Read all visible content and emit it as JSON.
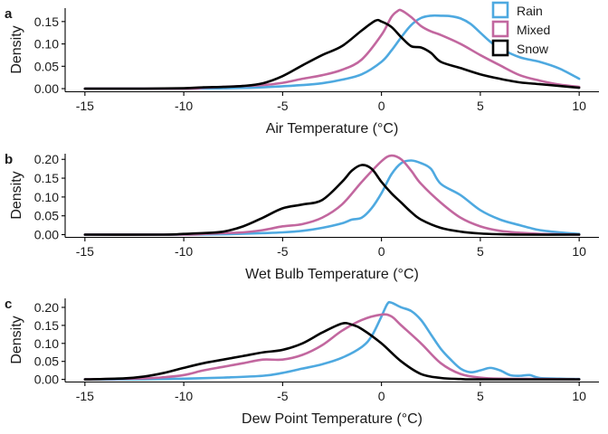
{
  "legend": {
    "items": [
      {
        "label": "Rain",
        "color": "#4ea9e0"
      },
      {
        "label": "Mixed",
        "color": "#c2679f"
      },
      {
        "label": "Snow",
        "color": "#000000"
      }
    ],
    "placement": "top-right"
  },
  "chart_data": [
    {
      "type": "line",
      "panel_label": "a",
      "xlabel": "Air Temperature (°C)",
      "ylabel": "Density",
      "xlim": [
        -16,
        11
      ],
      "ylim": [
        -0.006,
        0.18
      ],
      "xticks": [
        -15,
        -10,
        -5,
        0,
        5,
        10
      ],
      "yticks": [
        0.0,
        0.05,
        0.1,
        0.15
      ],
      "ytick_labels": [
        "0.00",
        "0.05",
        "0.10",
        "0.15"
      ],
      "grid": false,
      "series": [
        {
          "name": "Rain",
          "color": "#4ea9e0",
          "points": [
            [
              -15,
              0
            ],
            [
              -10,
              0
            ],
            [
              -8,
              0.001
            ],
            [
              -6,
              0.003
            ],
            [
              -4,
              0.008
            ],
            [
              -3,
              0.012
            ],
            [
              -2,
              0.02
            ],
            [
              -1,
              0.032
            ],
            [
              0,
              0.06
            ],
            [
              0.5,
              0.085
            ],
            [
              1,
              0.115
            ],
            [
              1.5,
              0.142
            ],
            [
              2,
              0.158
            ],
            [
              2.5,
              0.163
            ],
            [
              3,
              0.163
            ],
            [
              3.5,
              0.162
            ],
            [
              4,
              0.157
            ],
            [
              4.5,
              0.145
            ],
            [
              5,
              0.125
            ],
            [
              5.5,
              0.105
            ],
            [
              6,
              0.09
            ],
            [
              7,
              0.07
            ],
            [
              8,
              0.06
            ],
            [
              9,
              0.045
            ],
            [
              10,
              0.022
            ]
          ]
        },
        {
          "name": "Mixed",
          "color": "#c2679f",
          "points": [
            [
              -15,
              0
            ],
            [
              -10,
              0
            ],
            [
              -9,
              0.002
            ],
            [
              -8,
              0.004
            ],
            [
              -6,
              0.008
            ],
            [
              -5,
              0.013
            ],
            [
              -4,
              0.022
            ],
            [
              -3,
              0.03
            ],
            [
              -2,
              0.042
            ],
            [
              -1,
              0.065
            ],
            [
              0,
              0.12
            ],
            [
              0.5,
              0.16
            ],
            [
              0.8,
              0.173
            ],
            [
              1,
              0.175
            ],
            [
              1.5,
              0.16
            ],
            [
              2,
              0.14
            ],
            [
              2.5,
              0.128
            ],
            [
              3,
              0.12
            ],
            [
              4,
              0.1
            ],
            [
              5,
              0.075
            ],
            [
              6,
              0.052
            ],
            [
              7,
              0.03
            ],
            [
              8,
              0.018
            ],
            [
              9,
              0.009
            ],
            [
              10,
              0.004
            ]
          ]
        },
        {
          "name": "Snow",
          "color": "#000000",
          "points": [
            [
              -15,
              0
            ],
            [
              -12,
              0
            ],
            [
              -10,
              0.001
            ],
            [
              -9,
              0.003
            ],
            [
              -8,
              0.004
            ],
            [
              -7,
              0.006
            ],
            [
              -6,
              0.012
            ],
            [
              -5,
              0.028
            ],
            [
              -4,
              0.052
            ],
            [
              -3,
              0.075
            ],
            [
              -2,
              0.095
            ],
            [
              -1,
              0.13
            ],
            [
              -0.3,
              0.152
            ],
            [
              0,
              0.15
            ],
            [
              0.5,
              0.138
            ],
            [
              1,
              0.115
            ],
            [
              1.5,
              0.095
            ],
            [
              2,
              0.092
            ],
            [
              2.5,
              0.08
            ],
            [
              3,
              0.06
            ],
            [
              4,
              0.046
            ],
            [
              5,
              0.032
            ],
            [
              6,
              0.022
            ],
            [
              7,
              0.014
            ],
            [
              8,
              0.01
            ],
            [
              9,
              0.006
            ],
            [
              10,
              0.002
            ]
          ]
        }
      ]
    },
    {
      "type": "line",
      "panel_label": "b",
      "xlabel": "Wet Bulb Temperature (°C)",
      "ylabel": "Density",
      "xlim": [
        -16,
        11
      ],
      "ylim": [
        -0.006,
        0.215
      ],
      "xticks": [
        -15,
        -10,
        -5,
        0,
        5,
        10
      ],
      "yticks": [
        0.0,
        0.05,
        0.1,
        0.15,
        0.2
      ],
      "ytick_labels": [
        "0.00",
        "0.05",
        "0.10",
        "0.15",
        "0.20"
      ],
      "grid": false,
      "series": [
        {
          "name": "Rain",
          "color": "#4ea9e0",
          "points": [
            [
              -15,
              0
            ],
            [
              -10,
              0
            ],
            [
              -8,
              0.001
            ],
            [
              -6,
              0.004
            ],
            [
              -5,
              0.006
            ],
            [
              -4,
              0.01
            ],
            [
              -3,
              0.018
            ],
            [
              -2,
              0.03
            ],
            [
              -1.5,
              0.04
            ],
            [
              -1,
              0.045
            ],
            [
              -0.5,
              0.07
            ],
            [
              0,
              0.11
            ],
            [
              0.5,
              0.16
            ],
            [
              1,
              0.19
            ],
            [
              1.5,
              0.197
            ],
            [
              2,
              0.19
            ],
            [
              2.5,
              0.175
            ],
            [
              3,
              0.135
            ],
            [
              4,
              0.105
            ],
            [
              5,
              0.065
            ],
            [
              6,
              0.04
            ],
            [
              7,
              0.025
            ],
            [
              7.5,
              0.018
            ],
            [
              8,
              0.012
            ],
            [
              9,
              0.006
            ],
            [
              10,
              0.002
            ]
          ]
        },
        {
          "name": "Mixed",
          "color": "#c2679f",
          "points": [
            [
              -15,
              0
            ],
            [
              -10,
              0
            ],
            [
              -9,
              0.002
            ],
            [
              -8,
              0.004
            ],
            [
              -7,
              0.006
            ],
            [
              -6,
              0.012
            ],
            [
              -5,
              0.022
            ],
            [
              -4,
              0.028
            ],
            [
              -3,
              0.045
            ],
            [
              -2,
              0.08
            ],
            [
              -1,
              0.14
            ],
            [
              0,
              0.195
            ],
            [
              0.5,
              0.21
            ],
            [
              1,
              0.2
            ],
            [
              1.5,
              0.17
            ],
            [
              2,
              0.135
            ],
            [
              3,
              0.085
            ],
            [
              4,
              0.045
            ],
            [
              5,
              0.022
            ],
            [
              6,
              0.01
            ],
            [
              7,
              0.005
            ],
            [
              8,
              0.002
            ],
            [
              10,
              0
            ]
          ]
        },
        {
          "name": "Snow",
          "color": "#000000",
          "points": [
            [
              -15,
              0
            ],
            [
              -11,
              0
            ],
            [
              -10,
              0.002
            ],
            [
              -9,
              0.004
            ],
            [
              -8,
              0.008
            ],
            [
              -7,
              0.022
            ],
            [
              -6,
              0.045
            ],
            [
              -5,
              0.07
            ],
            [
              -4,
              0.08
            ],
            [
              -3,
              0.092
            ],
            [
              -2,
              0.14
            ],
            [
              -1.5,
              0.17
            ],
            [
              -1,
              0.185
            ],
            [
              -0.5,
              0.175
            ],
            [
              0,
              0.14
            ],
            [
              0.5,
              0.11
            ],
            [
              1,
              0.085
            ],
            [
              1.5,
              0.06
            ],
            [
              2,
              0.04
            ],
            [
              3,
              0.018
            ],
            [
              4,
              0.008
            ],
            [
              5,
              0.003
            ],
            [
              6,
              0.001
            ],
            [
              7,
              0
            ],
            [
              10,
              0
            ]
          ]
        }
      ]
    },
    {
      "type": "line",
      "panel_label": "c",
      "xlabel": "Dew Point Temperature (°C)",
      "ylabel": "Density",
      "xlim": [
        -16,
        11
      ],
      "ylim": [
        -0.006,
        0.225
      ],
      "xticks": [
        -15,
        -10,
        -5,
        0,
        5,
        10
      ],
      "yticks": [
        0.0,
        0.05,
        0.1,
        0.15,
        0.2
      ],
      "ytick_labels": [
        "0.00",
        "0.05",
        "0.10",
        "0.15",
        "0.20"
      ],
      "grid": false,
      "series": [
        {
          "name": "Rain",
          "color": "#4ea9e0",
          "points": [
            [
              -15,
              0
            ],
            [
              -12,
              0
            ],
            [
              -10,
              0.002
            ],
            [
              -8,
              0.005
            ],
            [
              -6,
              0.01
            ],
            [
              -5,
              0.018
            ],
            [
              -4,
              0.03
            ],
            [
              -3,
              0.042
            ],
            [
              -2,
              0.06
            ],
            [
              -1,
              0.09
            ],
            [
              -0.5,
              0.12
            ],
            [
              0,
              0.175
            ],
            [
              0.3,
              0.21
            ],
            [
              0.5,
              0.213
            ],
            [
              1,
              0.2
            ],
            [
              1.5,
              0.19
            ],
            [
              2,
              0.165
            ],
            [
              2.5,
              0.125
            ],
            [
              3,
              0.085
            ],
            [
              3.5,
              0.055
            ],
            [
              4,
              0.03
            ],
            [
              4.5,
              0.02
            ],
            [
              5,
              0.025
            ],
            [
              5.5,
              0.032
            ],
            [
              6,
              0.025
            ],
            [
              6.5,
              0.012
            ],
            [
              7,
              0.01
            ],
            [
              7.5,
              0.012
            ],
            [
              8,
              0.004
            ],
            [
              9,
              0.002
            ],
            [
              10,
              0.001
            ]
          ]
        },
        {
          "name": "Mixed",
          "color": "#c2679f",
          "points": [
            [
              -15,
              0
            ],
            [
              -12,
              0.003
            ],
            [
              -11,
              0.006
            ],
            [
              -10,
              0.012
            ],
            [
              -9,
              0.025
            ],
            [
              -8,
              0.035
            ],
            [
              -7,
              0.045
            ],
            [
              -6,
              0.055
            ],
            [
              -5,
              0.055
            ],
            [
              -4,
              0.068
            ],
            [
              -3,
              0.095
            ],
            [
              -2,
              0.135
            ],
            [
              -1,
              0.165
            ],
            [
              0,
              0.18
            ],
            [
              0.5,
              0.175
            ],
            [
              1,
              0.15
            ],
            [
              2,
              0.1
            ],
            [
              3,
              0.045
            ],
            [
              4,
              0.015
            ],
            [
              5,
              0.005
            ],
            [
              6,
              0.002
            ],
            [
              8,
              0.001
            ],
            [
              10,
              0
            ]
          ]
        },
        {
          "name": "Snow",
          "color": "#000000",
          "points": [
            [
              -15,
              0
            ],
            [
              -13,
              0.003
            ],
            [
              -12,
              0.008
            ],
            [
              -11,
              0.018
            ],
            [
              -10,
              0.032
            ],
            [
              -9,
              0.045
            ],
            [
              -8,
              0.055
            ],
            [
              -7,
              0.065
            ],
            [
              -6,
              0.075
            ],
            [
              -5,
              0.082
            ],
            [
              -4,
              0.1
            ],
            [
              -3,
              0.13
            ],
            [
              -2,
              0.155
            ],
            [
              -1.5,
              0.152
            ],
            [
              -1,
              0.14
            ],
            [
              0,
              0.1
            ],
            [
              1,
              0.05
            ],
            [
              2,
              0.015
            ],
            [
              3,
              0.004
            ],
            [
              4,
              0.001
            ],
            [
              5,
              0
            ],
            [
              10,
              0
            ]
          ]
        }
      ]
    }
  ]
}
